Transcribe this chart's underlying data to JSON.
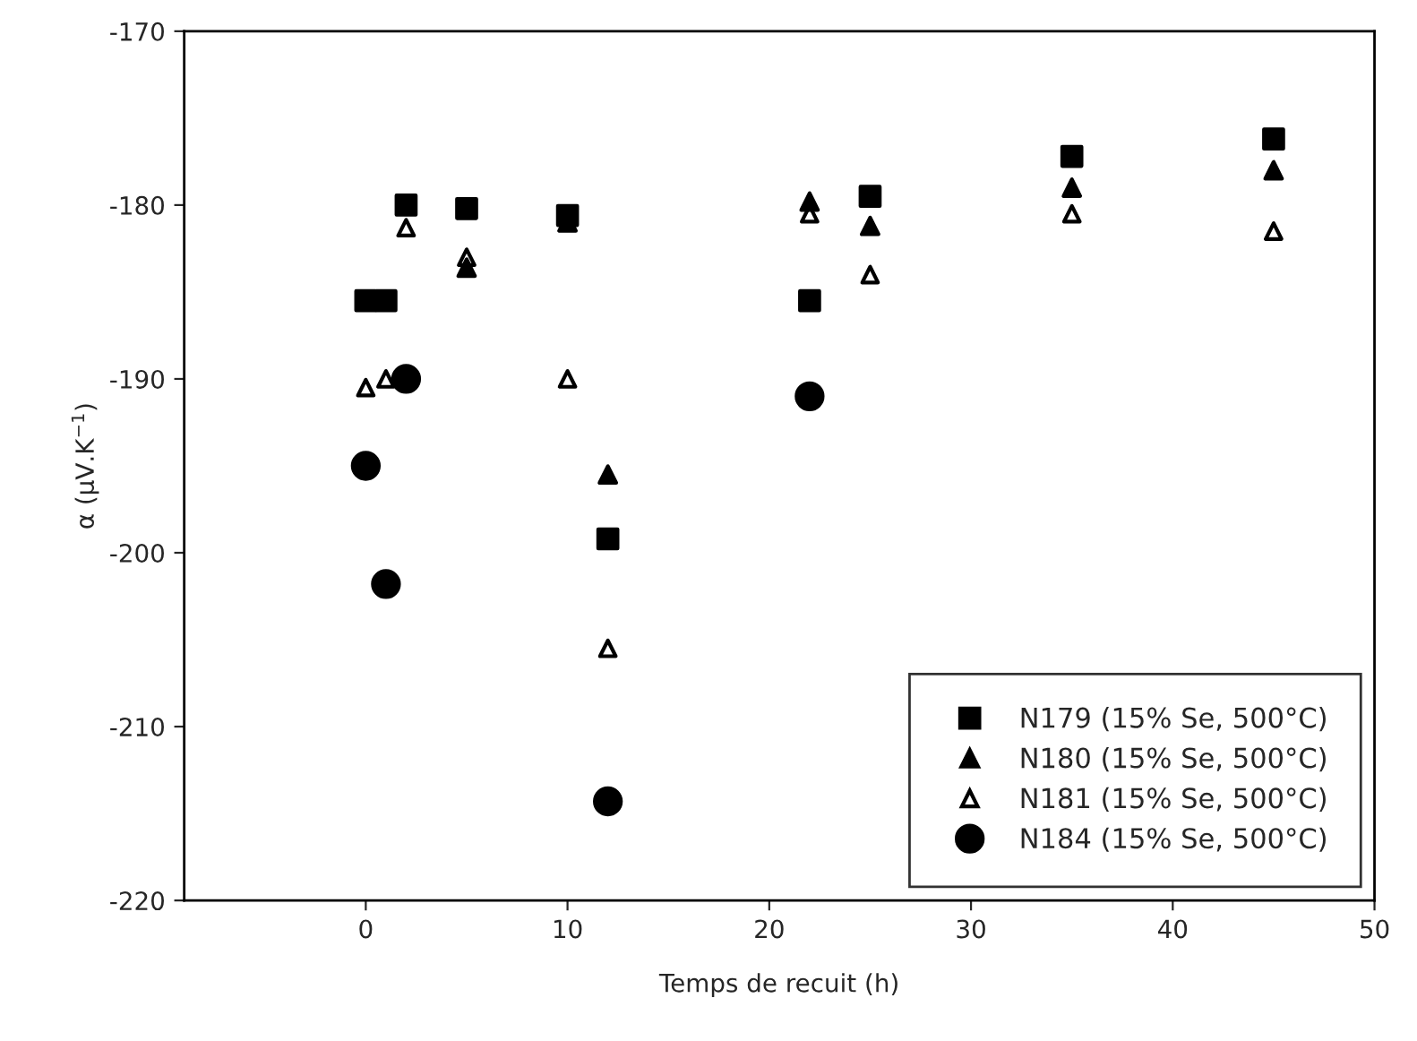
{
  "chart_data": {
    "type": "scatter",
    "xlabel": "Temps de recuit (h)",
    "ylabel": "α (µV.K$^{−1}$)",
    "xlim": [
      -9,
      50
    ],
    "xticks": [
      0,
      10,
      20,
      30,
      40,
      50
    ],
    "ylim": [
      -220,
      -170
    ],
    "yticks": [
      -220,
      -210,
      -200,
      -190,
      -180,
      -170
    ],
    "grid": false,
    "legend": "bottom right",
    "series": [
      {
        "name": "N179 (15% Se, 500°C)",
        "color": "#000000",
        "marker": "square",
        "x": [
          0,
          1,
          2,
          5,
          10,
          12,
          22,
          25,
          35,
          45
        ],
        "values": [
          -185.5,
          -185.5,
          -180,
          -180.2,
          -180.6,
          -199.2,
          -185.5,
          -179.5,
          -177.2,
          -176.2
        ]
      },
      {
        "name": "N180 (15% Se, 500°C)",
        "color": "#000000",
        "marker": "triangle",
        "x": [
          5,
          10,
          12,
          22,
          25,
          35,
          45
        ],
        "values": [
          -183.6,
          -181,
          -195.5,
          -179.8,
          -181.2,
          -179,
          -178
        ]
      },
      {
        "name": "N181 (15% Se, 500°C)",
        "color": "#000000",
        "marker": "triangle_open",
        "x": [
          0,
          1,
          2,
          5,
          10,
          12,
          22,
          25,
          35,
          45
        ],
        "values": [
          -190.5,
          -190,
          -181.3,
          -183,
          -190,
          -205.5,
          -180.5,
          -184,
          -180.5,
          -181.5
        ]
      },
      {
        "name": "N184 (15% Se, 500°C)",
        "color": "#000000",
        "marker": "circle",
        "x": [
          0,
          1,
          2,
          12,
          22
        ],
        "values": [
          -195,
          -201.8,
          -190,
          -214.3,
          -191
        ]
      }
    ]
  }
}
